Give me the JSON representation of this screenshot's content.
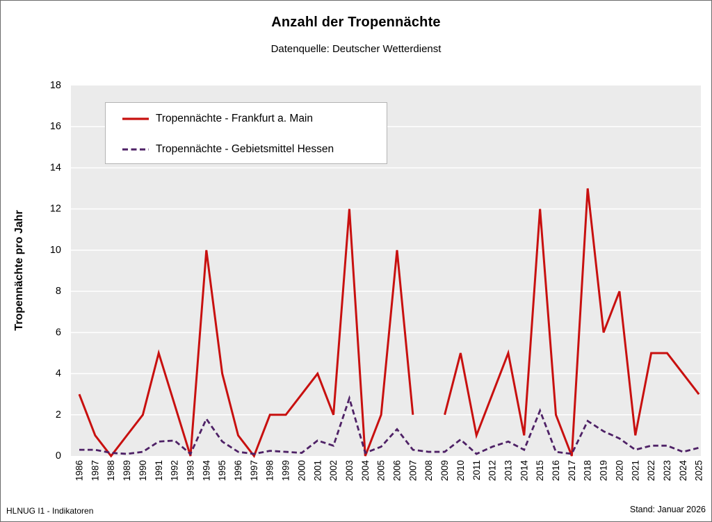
{
  "header": {
    "title": "Anzahl der Tropennächte",
    "subtitle": "Datenquelle: Deutscher Wetterdienst"
  },
  "footer": {
    "left": "HLNUG I1 - Indikatoren",
    "right": "Stand: Januar 2026"
  },
  "chart_data": {
    "type": "line",
    "title": "Anzahl der Tropennächte",
    "subtitle": "Datenquelle: Deutscher Wetterdienst",
    "xlabel": "",
    "ylabel": "Tropennächte pro Jahr",
    "ylim": [
      0,
      18
    ],
    "ytick_step": 2,
    "grid": true,
    "legend_position": "upper-left-inside",
    "plot_bg": "#EBEBEB",
    "gridline_color": "#FFFFFF",
    "x": [
      1986,
      1987,
      1988,
      1989,
      1990,
      1991,
      1992,
      1993,
      1994,
      1995,
      1996,
      1997,
      1998,
      1999,
      2000,
      2001,
      2002,
      2003,
      2004,
      2005,
      2006,
      2007,
      2008,
      2009,
      2010,
      2011,
      2012,
      2013,
      2014,
      2015,
      2016,
      2017,
      2018,
      2019,
      2020,
      2021,
      2022,
      2023,
      2024,
      2025
    ],
    "series": [
      {
        "name": "Tropennächte - Frankfurt a. Main",
        "color": "#C8100F",
        "style": "solid",
        "line_width": 3,
        "values": [
          3,
          1,
          0,
          1,
          2,
          5,
          2.5,
          0,
          10,
          4,
          1,
          0,
          2,
          2,
          3,
          4,
          2,
          12,
          0,
          2,
          10,
          2,
          null,
          2,
          5,
          1,
          3,
          5,
          1,
          12,
          2,
          0,
          13,
          6,
          8,
          1,
          5,
          5,
          4,
          3
        ]
      },
      {
        "name": "Tropennächte - Gebietsmittel Hessen",
        "color": "#4E2166",
        "style": "dashed",
        "line_width": 2.8,
        "values": [
          0.3,
          0.3,
          0.15,
          0.1,
          0.2,
          0.7,
          0.75,
          0.1,
          1.8,
          0.7,
          0.2,
          0.1,
          0.25,
          0.2,
          0.15,
          0.75,
          0.5,
          2.8,
          0.15,
          0.45,
          1.3,
          0.3,
          0.2,
          0.2,
          0.8,
          0.1,
          0.45,
          0.7,
          0.3,
          2.2,
          0.2,
          0.1,
          1.7,
          1.2,
          0.85,
          0.3,
          0.5,
          0.5,
          0.2,
          0.4
        ]
      }
    ]
  }
}
